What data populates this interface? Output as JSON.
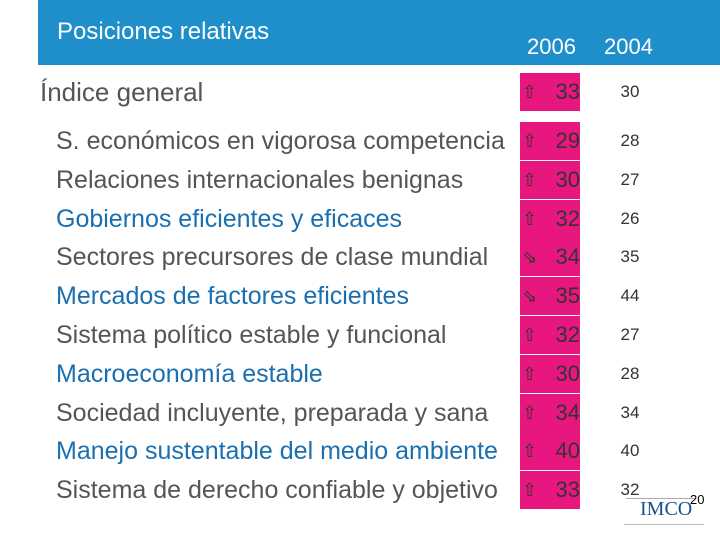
{
  "header": {
    "title": "Posiciones relativas",
    "columns": [
      "2006",
      "2004"
    ]
  },
  "index_row": {
    "label": "Índice general",
    "v2006": 33,
    "v2004": 30,
    "trend": "up",
    "color": "#555555"
  },
  "rows": [
    {
      "label": "S. económicos en vigorosa competencia",
      "v2006": 29,
      "v2004": 28,
      "trend": "up",
      "color": "#555555"
    },
    {
      "label": "Relaciones internacionales benignas",
      "v2006": 30,
      "v2004": 27,
      "trend": "up",
      "color": "#555555"
    },
    {
      "label": "Gobiernos eficientes y eficaces",
      "v2006": 32,
      "v2004": 26,
      "trend": "up",
      "color": "#1a6fb0"
    },
    {
      "label": "Sectores precursores de clase mundial",
      "v2006": 34,
      "v2004": 35,
      "trend": "down",
      "color": "#555555"
    },
    {
      "label": "Mercados de factores eficientes",
      "v2006": 35,
      "v2004": 44,
      "trend": "down",
      "color": "#1a6fb0"
    },
    {
      "label": "Sistema político estable y funcional",
      "v2006": 32,
      "v2004": 27,
      "trend": "up",
      "color": "#555555"
    },
    {
      "label": "Macroeconomía estable",
      "v2006": 30,
      "v2004": 28,
      "trend": "up",
      "color": "#1a6fb0"
    },
    {
      "label": "Sociedad incluyente, preparada y sana",
      "v2006": 34,
      "v2004": 34,
      "trend": "up",
      "color": "#555555"
    },
    {
      "label": "Manejo sustentable del medio ambiente",
      "v2006": 40,
      "v2004": 40,
      "trend": "up",
      "color": "#1a6fb0"
    },
    {
      "label": "Sistema de derecho confiable y objetivo",
      "v2006": 33,
      "v2004": 32,
      "trend": "up",
      "color": "#555555"
    }
  ],
  "footer": {
    "page": "20",
    "logo": "IMCO"
  }
}
